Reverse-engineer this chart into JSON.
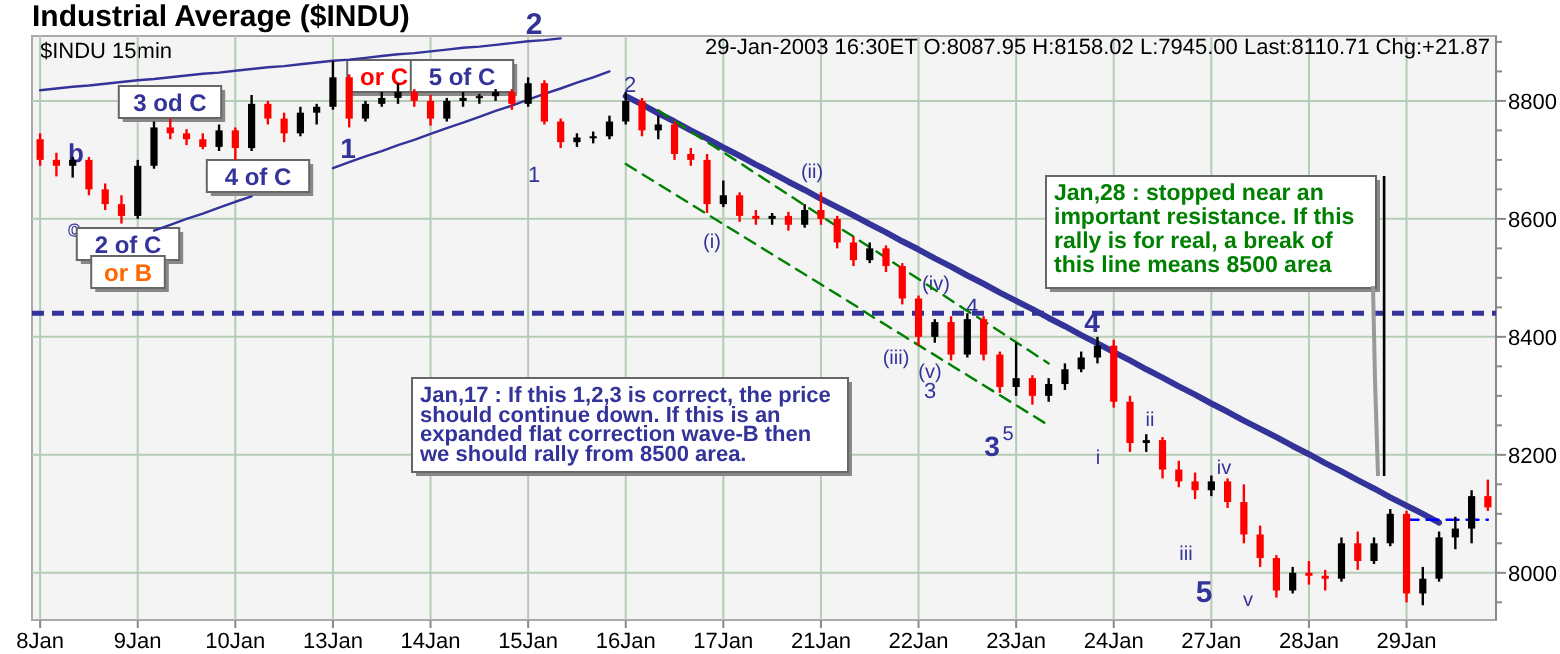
{
  "chart_data": {
    "type": "candlestick",
    "title": "Industrial Average ($INDU)",
    "subtitle": "$INDU 15min",
    "categories": [
      "8Jan",
      null,
      null,
      null,
      null,
      null,
      "9Jan",
      null,
      null,
      null,
      null,
      null,
      "10Jan",
      null,
      null,
      null,
      null,
      null,
      "13Jan",
      null,
      null,
      null,
      null,
      null,
      "14Jan",
      null,
      null,
      null,
      null,
      null,
      "15Jan",
      null,
      null,
      null,
      null,
      null,
      "16Jan",
      null,
      null,
      null,
      null,
      null,
      "17Jan",
      null,
      null,
      null,
      null,
      null,
      "21Jan",
      null,
      null,
      null,
      null,
      null,
      "22Jan",
      null,
      null,
      null,
      null,
      null,
      "23Jan",
      null,
      null,
      null,
      null,
      null,
      "24Jan",
      null,
      null,
      null,
      null,
      null,
      "27Jan",
      null,
      null,
      null,
      null,
      null,
      "28Jan",
      null,
      null,
      null,
      null,
      null,
      "29Jan",
      null,
      null,
      null,
      null,
      null
    ],
    "ohlc": [
      [
        8735,
        8745,
        8690,
        8700
      ],
      [
        8700,
        8712,
        8672,
        8690
      ],
      [
        8690,
        8705,
        8670,
        8700
      ],
      [
        8700,
        8705,
        8640,
        8650
      ],
      [
        8650,
        8660,
        8615,
        8625
      ],
      [
        8625,
        8640,
        8592,
        8605
      ],
      [
        8605,
        8700,
        8600,
        8690
      ],
      [
        8690,
        8765,
        8685,
        8755
      ],
      [
        8755,
        8770,
        8735,
        8745
      ],
      [
        8745,
        8752,
        8725,
        8735
      ],
      [
        8735,
        8745,
        8718,
        8722
      ],
      [
        8722,
        8760,
        8715,
        8750
      ],
      [
        8750,
        8755,
        8700,
        8720
      ],
      [
        8720,
        8810,
        8715,
        8795
      ],
      [
        8795,
        8800,
        8760,
        8770
      ],
      [
        8770,
        8780,
        8730,
        8745
      ],
      [
        8745,
        8790,
        8740,
        8780
      ],
      [
        8780,
        8795,
        8760,
        8790
      ],
      [
        8790,
        8868,
        8785,
        8840
      ],
      [
        8840,
        8845,
        8755,
        8770
      ],
      [
        8770,
        8800,
        8765,
        8795
      ],
      [
        8795,
        8815,
        8790,
        8805
      ],
      [
        8805,
        8830,
        8795,
        8815
      ],
      [
        8815,
        8820,
        8790,
        8800
      ],
      [
        8800,
        8810,
        8758,
        8770
      ],
      [
        8770,
        8805,
        8765,
        8800
      ],
      [
        8800,
        8815,
        8790,
        8805
      ],
      [
        8805,
        8812,
        8795,
        8808
      ],
      [
        8808,
        8820,
        8800,
        8815
      ],
      [
        8815,
        8820,
        8785,
        8795
      ],
      [
        8795,
        8840,
        8790,
        8830
      ],
      [
        8830,
        8835,
        8760,
        8765
      ],
      [
        8765,
        8770,
        8720,
        8730
      ],
      [
        8730,
        8745,
        8722,
        8738
      ],
      [
        8738,
        8748,
        8728,
        8740
      ],
      [
        8740,
        8775,
        8735,
        8765
      ],
      [
        8765,
        8815,
        8760,
        8800
      ],
      [
        8800,
        8805,
        8740,
        8750
      ],
      [
        8750,
        8775,
        8735,
        8760
      ],
      [
        8760,
        8765,
        8700,
        8710
      ],
      [
        8710,
        8720,
        8690,
        8700
      ],
      [
        8700,
        8710,
        8610,
        8625
      ],
      [
        8625,
        8665,
        8620,
        8640
      ],
      [
        8640,
        8645,
        8595,
        8605
      ],
      [
        8605,
        8615,
        8590,
        8600
      ],
      [
        8600,
        8610,
        8590,
        8605
      ],
      [
        8605,
        8612,
        8580,
        8590
      ],
      [
        8590,
        8625,
        8585,
        8615
      ],
      [
        8615,
        8645,
        8590,
        8600
      ],
      [
        8600,
        8605,
        8550,
        8560
      ],
      [
        8560,
        8570,
        8520,
        8530
      ],
      [
        8530,
        8560,
        8525,
        8550
      ],
      [
        8550,
        8555,
        8510,
        8520
      ],
      [
        8520,
        8525,
        8455,
        8465
      ],
      [
        8465,
        8470,
        8385,
        8400
      ],
      [
        8400,
        8430,
        8390,
        8425
      ],
      [
        8425,
        8435,
        8360,
        8370
      ],
      [
        8370,
        8440,
        8365,
        8430
      ],
      [
        8430,
        8435,
        8360,
        8370
      ],
      [
        8370,
        8375,
        8305,
        8315
      ],
      [
        8315,
        8390,
        8300,
        8330
      ],
      [
        8330,
        8335,
        8285,
        8300
      ],
      [
        8300,
        8330,
        8290,
        8320
      ],
      [
        8320,
        8355,
        8310,
        8345
      ],
      [
        8345,
        8375,
        8340,
        8365
      ],
      [
        8365,
        8400,
        8355,
        8385
      ],
      [
        8385,
        8395,
        8280,
        8290
      ],
      [
        8290,
        8300,
        8205,
        8220
      ],
      [
        8220,
        8235,
        8205,
        8225
      ],
      [
        8225,
        8230,
        8160,
        8175
      ],
      [
        8175,
        8190,
        8145,
        8155
      ],
      [
        8155,
        8170,
        8125,
        8140
      ],
      [
        8140,
        8165,
        8130,
        8155
      ],
      [
        8155,
        8160,
        8110,
        8120
      ],
      [
        8120,
        8150,
        8050,
        8065
      ],
      [
        8065,
        8080,
        8010,
        8025
      ],
      [
        8025,
        8030,
        7958,
        7970
      ],
      [
        7970,
        8010,
        7965,
        8000
      ],
      [
        8000,
        8020,
        7980,
        7995
      ],
      [
        7995,
        8005,
        7970,
        7990
      ],
      [
        7990,
        8060,
        7985,
        8050
      ],
      [
        8050,
        8070,
        8005,
        8020
      ],
      [
        8020,
        8060,
        8015,
        8050
      ],
      [
        8050,
        8108,
        8045,
        8100
      ],
      [
        8100,
        8105,
        7950,
        7965
      ],
      [
        7965,
        8010,
        7945,
        7990
      ],
      [
        7990,
        8070,
        7985,
        8060
      ],
      [
        8060,
        8095,
        8040,
        8075
      ],
      [
        8075,
        8140,
        8050,
        8130
      ],
      [
        8130,
        8158,
        8105,
        8111
      ]
    ],
    "series": [
      {
        "type": "line",
        "color": "#333399",
        "line_style": "solid",
        "values": [
          8818,
          8821,
          8824,
          8826,
          8829,
          8832,
          8835,
          8837,
          8840,
          8843,
          8846,
          8848,
          8851,
          8854,
          8857,
          8859,
          8862,
          8865,
          8868,
          8870,
          8873,
          8876,
          8879,
          8881,
          8884,
          8887,
          8890,
          8892,
          8895,
          8898,
          8901,
          8903,
          8906,
          null,
          null,
          null,
          null,
          null,
          null,
          null,
          null,
          null,
          null,
          null,
          null,
          null,
          null,
          null,
          null,
          null,
          null,
          null,
          null,
          null,
          null,
          null,
          null,
          null,
          null,
          null,
          null,
          null,
          null,
          null,
          null,
          null,
          null,
          null,
          null,
          null,
          null,
          null,
          null,
          null,
          null,
          null,
          null,
          null,
          null,
          null,
          null,
          null,
          null,
          null,
          null,
          null,
          null,
          null,
          null,
          null
        ]
      },
      {
        "type": "line",
        "color": "#333399",
        "line_style": "solid",
        "values": [
          null,
          null,
          null,
          null,
          null,
          null,
          null,
          8580,
          8590,
          8600,
          8609,
          8619,
          8629,
          8638,
          null,
          null,
          null,
          null,
          8686,
          8696,
          8706,
          8715,
          8725,
          8734,
          8744,
          8754,
          8763,
          8773,
          8783,
          8792,
          8802,
          8812,
          8821,
          8831,
          8840,
          8850,
          null,
          null,
          null,
          null,
          null,
          null,
          null,
          null,
          null,
          null,
          null,
          null,
          null,
          null,
          null,
          null,
          null,
          null,
          null,
          null,
          null,
          null,
          null,
          null,
          null,
          null,
          null,
          null,
          null,
          null,
          null,
          null,
          null,
          null,
          null,
          null,
          null,
          null,
          null,
          null,
          null,
          null,
          null,
          null,
          null,
          null,
          null,
          null,
          null,
          null,
          null,
          null,
          null,
          null
        ]
      },
      {
        "type": "line",
        "color": "#333399",
        "line_style": "solid",
        "values": [
          null,
          null,
          null,
          null,
          null,
          null,
          null,
          null,
          null,
          null,
          null,
          null,
          null,
          null,
          null,
          null,
          null,
          null,
          null,
          null,
          null,
          null,
          null,
          null,
          null,
          null,
          null,
          null,
          null,
          null,
          null,
          null,
          null,
          null,
          null,
          null,
          8808,
          8794,
          8779,
          8765,
          8750,
          8736,
          8721,
          8707,
          8692,
          8678,
          8663,
          8649,
          8634,
          8620,
          8606,
          8591,
          8577,
          8562,
          8548,
          8533,
          8519,
          8504,
          8490,
          8475,
          8461,
          8447,
          8432,
          8418,
          8403,
          8389,
          8374,
          8360,
          8345,
          8331,
          8316,
          8302,
          8287,
          8273,
          8258,
          8244,
          8230,
          8215,
          8201,
          8186,
          8172,
          8157,
          8143,
          8128,
          8114,
          8100,
          8085,
          null,
          null,
          null
        ]
      },
      {
        "type": "line",
        "color": "#008000",
        "line_style": "dashed",
        "values": [
          null,
          null,
          null,
          null,
          null,
          null,
          null,
          null,
          null,
          null,
          null,
          null,
          null,
          null,
          null,
          null,
          null,
          null,
          null,
          null,
          null,
          null,
          null,
          null,
          null,
          null,
          null,
          null,
          null,
          null,
          null,
          null,
          null,
          null,
          null,
          null,
          null,
          null,
          8784,
          8766,
          8748,
          8730,
          8713,
          8695,
          8677,
          8659,
          8641,
          8623,
          8605,
          8587,
          8570,
          8552,
          8534,
          8516,
          8498,
          8480,
          8462,
          8444,
          8427,
          8409,
          8391,
          8373,
          8355,
          null,
          null,
          null,
          null,
          null,
          null,
          null,
          null,
          null,
          null,
          null,
          null,
          null,
          null,
          null,
          null,
          null,
          null,
          null,
          null,
          null,
          null,
          null,
          null,
          null,
          null,
          null
        ]
      },
      {
        "type": "line",
        "color": "#008000",
        "line_style": "dashed",
        "values": [
          null,
          null,
          null,
          null,
          null,
          null,
          null,
          null,
          null,
          null,
          null,
          null,
          null,
          null,
          null,
          null,
          null,
          null,
          null,
          null,
          null,
          null,
          null,
          null,
          null,
          null,
          null,
          null,
          null,
          null,
          null,
          null,
          null,
          null,
          null,
          null,
          8693,
          8676,
          8659,
          8642,
          8625,
          8608,
          8591,
          8574,
          8557,
          8540,
          8523,
          8506,
          8489,
          8472,
          8455,
          8437,
          8420,
          8403,
          8386,
          8369,
          8352,
          8335,
          8318,
          8301,
          8284,
          8267,
          8250,
          null,
          null,
          null,
          null,
          null,
          null,
          null,
          null,
          null,
          null,
          null,
          null,
          null,
          null,
          null,
          null,
          null,
          null,
          null,
          null,
          null,
          null,
          null,
          null,
          null,
          null,
          null
        ]
      },
      {
        "type": "line",
        "color": "#0000ff",
        "line_style": "dashed",
        "values": [
          null,
          null,
          null,
          null,
          null,
          null,
          null,
          null,
          null,
          null,
          null,
          null,
          null,
          null,
          null,
          null,
          null,
          null,
          null,
          null,
          null,
          null,
          null,
          null,
          null,
          null,
          null,
          null,
          null,
          null,
          null,
          null,
          null,
          null,
          null,
          null,
          null,
          null,
          null,
          null,
          null,
          null,
          null,
          null,
          null,
          null,
          null,
          null,
          null,
          null,
          null,
          null,
          null,
          null,
          null,
          null,
          null,
          null,
          null,
          null,
          null,
          null,
          null,
          null,
          null,
          null,
          null,
          null,
          null,
          null,
          null,
          null,
          null,
          null,
          null,
          null,
          null,
          null,
          null,
          null,
          null,
          null,
          null,
          null,
          8090,
          8090,
          8090,
          8090,
          8090,
          8090
        ]
      }
    ],
    "ylim": [
      7920,
      8910
    ],
    "yticks": [
      {
        "value": 7950,
        "label": null
      },
      8000,
      {
        "value": 8050,
        "label": null
      },
      {
        "value": 8100,
        "label": null
      },
      {
        "value": 8150,
        "label": null
      },
      8200,
      {
        "value": 8250,
        "label": null
      },
      {
        "value": 8300,
        "label": null
      },
      {
        "value": 8350,
        "label": null
      },
      8400,
      {
        "value": 8450,
        "label": null
      },
      {
        "value": 8500,
        "label": null
      },
      {
        "value": 8550,
        "label": null
      },
      8600,
      {
        "value": 8650,
        "label": null
      },
      {
        "value": 8700,
        "label": null
      },
      {
        "value": 8750,
        "label": null
      },
      8800,
      {
        "value": 8850,
        "label": null
      },
      {
        "value": 8900,
        "label": null
      }
    ],
    "grid": true,
    "ref_lines": [
      {
        "axis": "y",
        "value": 8440,
        "color": "#333399",
        "line_style": "dashed"
      }
    ],
    "annotations": [
      "b",
      "c",
      "2 of C",
      "or B",
      "3 od C",
      "4 of C",
      "1",
      "or C",
      "5 of C",
      "2",
      "1",
      "2",
      "(i)",
      "(ii)",
      "(iii)",
      "(iv)",
      "(v)",
      "3",
      "4",
      "3",
      "5",
      "4",
      "i",
      "ii",
      "iii",
      "iv",
      "5",
      "v",
      "Jan,17 : If this 1,2,3 is correct, the price\nshould continue down. If this is an\nexpanded flat correction wave-B then\nwe should rally from 8500 area.",
      "Jan,28 : stopped near an\nimportant resistance. If this\nrally is for real, a break of\nthis line means  8500 area",
      "29-Jan-2003 16:30ET O:8087.95 H:8158.02 L:7945.00 Last:8110.71 Chg:+21.87"
    ]
  }
}
